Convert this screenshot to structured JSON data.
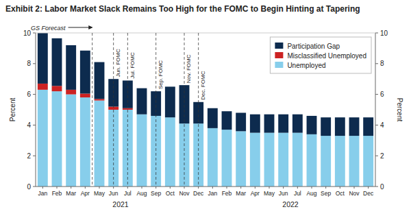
{
  "chart_data": {
    "type": "bar",
    "stacked": true,
    "title": "Exhibit 2: Labor Market Slack Remains Too High for the FOMC to Begin Hinting at Tapering",
    "ylabel": "Percent",
    "y2label": "Percent",
    "categories": [
      "Jan",
      "Feb",
      "Mar",
      "Apr",
      "May",
      "Jun",
      "Jul",
      "Aug",
      "Sep",
      "Oct",
      "Nov",
      "Dec",
      "Jan",
      "Feb",
      "Mar",
      "Apr",
      "May",
      "Jun",
      "Jul",
      "Aug",
      "Sep",
      "Oct",
      "Nov",
      "Dec"
    ],
    "series": [
      {
        "name": "Unemployed",
        "color": "#87CEEB",
        "values": [
          6.3,
          6.2,
          6.0,
          5.8,
          5.6,
          5.0,
          5.0,
          4.7,
          4.6,
          4.5,
          4.1,
          4.1,
          3.8,
          3.7,
          3.6,
          3.5,
          3.5,
          3.5,
          3.5,
          3.4,
          3.3,
          3.3,
          3.3,
          3.3
        ]
      },
      {
        "name": "Misclassified Unemployed",
        "color": "#cc2222",
        "values": [
          0.4,
          0.35,
          0.3,
          0.25,
          0.1,
          0.2,
          0.1,
          0.0,
          0.0,
          0.0,
          0.0,
          0.0,
          0.0,
          0.0,
          0.0,
          0.0,
          0.0,
          0.0,
          0.0,
          0.0,
          0.0,
          0.0,
          0.0,
          0.0
        ]
      },
      {
        "name": "Participation Gap",
        "color": "#0d2b4e",
        "values": [
          3.3,
          3.1,
          2.9,
          2.8,
          2.4,
          1.8,
          1.8,
          1.7,
          1.6,
          2.0,
          2.5,
          1.4,
          1.3,
          1.2,
          1.2,
          1.2,
          1.2,
          1.2,
          1.2,
          1.2,
          1.2,
          1.2,
          1.2,
          1.2
        ]
      }
    ],
    "ylim": [
      0,
      10
    ],
    "yticks": [
      0,
      2,
      4,
      6,
      8,
      10
    ],
    "y2lim": [
      0,
      10
    ],
    "y2ticks": [
      0,
      2,
      4,
      6,
      8,
      10
    ],
    "grid": false,
    "legend": "upper right",
    "annotations": [
      {
        "type": "vline",
        "text": "Jun. FOMC",
        "index": 5
      },
      {
        "type": "vline",
        "text": "Jul. FOMC",
        "index": 6
      },
      {
        "type": "vline",
        "text": "Sep. FOMC",
        "index": 8
      },
      {
        "type": "vline",
        "text": "Nov. FOMC",
        "index": 10
      },
      {
        "type": "vline",
        "text": "Dec. FOMC",
        "index": 11
      },
      {
        "type": "forecast",
        "text": "GS Forecast",
        "start_index": 4
      },
      {
        "type": "year",
        "text": "2021",
        "from_index": 0,
        "to_index": 11
      },
      {
        "type": "year",
        "text": "2022",
        "from_index": 12,
        "to_index": 23
      }
    ]
  }
}
